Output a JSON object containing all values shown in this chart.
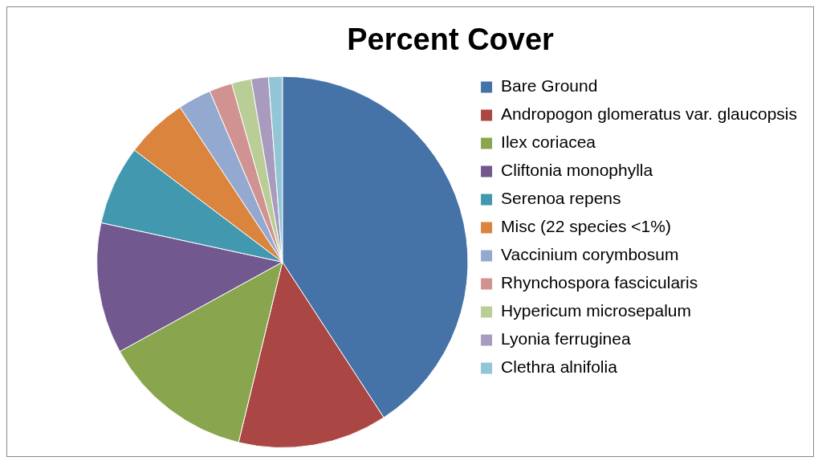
{
  "chart_data": {
    "type": "pie",
    "title": "Percent Cover",
    "categories": [
      "Bare Ground",
      "Andropogon glomeratus var. glaucopsis",
      "Ilex coriacea",
      "Cliftonia monophylla",
      "Serenoa repens",
      "Misc (22 species <1%)",
      "Vaccinium corymbosum",
      "Rhynchospora fascicularis",
      "Hypericum microsepalum",
      "Lyonia ferruginea",
      "Clethra alnifolia"
    ],
    "values": [
      40.8,
      13.0,
      13.2,
      11.4,
      6.9,
      5.4,
      2.9,
      2.0,
      1.7,
      1.5,
      1.2
    ],
    "colors": [
      "#4572a7",
      "#aa4643",
      "#89a54e",
      "#71588f",
      "#4198af",
      "#db843d",
      "#93a9cf",
      "#d19392",
      "#b9cd96",
      "#a99bbd",
      "#92c5d6"
    ],
    "legend": "right"
  }
}
